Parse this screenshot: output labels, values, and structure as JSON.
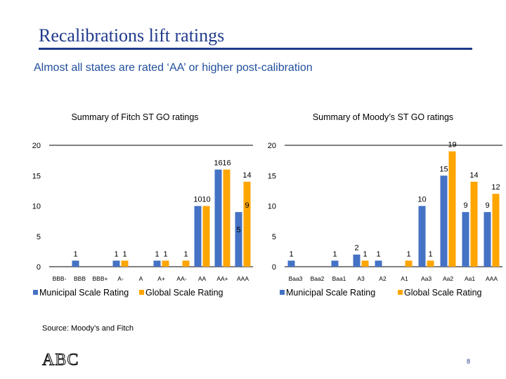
{
  "slide": {
    "title": "Recalibrations lift ratings",
    "subtitle": "Almost all states are rated ‘AA’ or higher post-calibration",
    "source": "Source: Moody’s and Fitch",
    "logo_text": "ABC",
    "page_number": "8"
  },
  "colors": {
    "municipal": "#4472c4",
    "global": "#ffa500",
    "title": "#1f3a8c"
  },
  "chart_data": [
    {
      "type": "bar",
      "title": "Summary of Fitch ST GO ratings",
      "categories": [
        "BBB-",
        "BBB",
        "BBB+",
        "A-",
        "A",
        "A+",
        "AA-",
        "AA",
        "AA+",
        "AAA"
      ],
      "series": [
        {
          "name": "Municipal Scale Rating",
          "values": [
            null,
            1,
            null,
            1,
            null,
            1,
            null,
            10,
            16,
            5
          ]
        },
        {
          "name": "Global Scale Rating",
          "values": [
            null,
            null,
            null,
            1,
            null,
            1,
            1,
            10,
            16,
            14
          ]
        }
      ],
      "data_labels": [
        {
          "series": 0,
          "category": 1,
          "text": "1"
        },
        {
          "series": 0,
          "category": 3,
          "text": "1"
        },
        {
          "series": 1,
          "category": 3,
          "text": "1"
        },
        {
          "series": 0,
          "category": 5,
          "text": "1"
        },
        {
          "series": 1,
          "category": 5,
          "text": "1"
        },
        {
          "series": 1,
          "category": 6,
          "text": "1"
        },
        {
          "series": 0,
          "category": 7,
          "text": "10"
        },
        {
          "series": 1,
          "category": 7,
          "text": "10"
        },
        {
          "series": 0,
          "category": 8,
          "text": "16"
        },
        {
          "series": 1,
          "category": 8,
          "text": "16"
        },
        {
          "series": 0,
          "category": 9,
          "text": "5"
        },
        {
          "series": 1,
          "category": 9,
          "text": "14"
        },
        {
          "series": 1,
          "category": 9,
          "text": "9"
        }
      ],
      "extra_bar": {
        "category": 9,
        "series": 0,
        "value": 9
      },
      "y_ticks": [
        0,
        5,
        10,
        15,
        20
      ],
      "ylim": [
        0,
        20
      ],
      "grid": false,
      "legend": "bottom"
    },
    {
      "type": "bar",
      "title": "Summary of Moody’s ST GO ratings",
      "categories": [
        "Baa3",
        "Baa2",
        "Baa1",
        "A3",
        "A2",
        "A1",
        "Aa3",
        "Aa2",
        "Aa1",
        "AAA"
      ],
      "series": [
        {
          "name": "Municipal Scale Rating",
          "values": [
            1,
            null,
            1,
            2,
            1,
            null,
            10,
            15,
            9,
            9
          ]
        },
        {
          "name": "Global Scale Rating",
          "values": [
            null,
            null,
            null,
            1,
            null,
            1,
            1,
            19,
            14,
            12
          ]
        }
      ],
      "y_ticks": [
        0,
        5,
        10,
        15,
        20
      ],
      "ylim": [
        0,
        20
      ],
      "grid": false,
      "legend": "bottom"
    }
  ]
}
